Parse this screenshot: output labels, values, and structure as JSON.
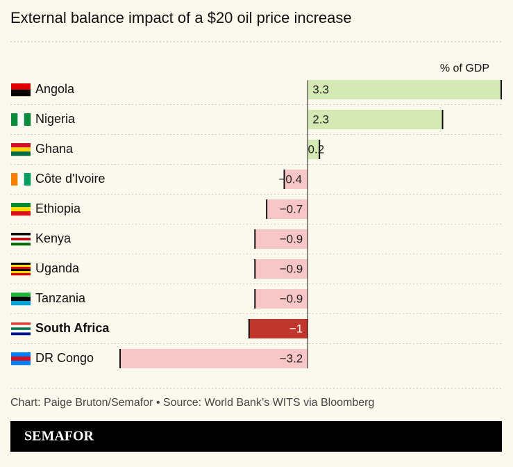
{
  "chart_data": {
    "type": "bar",
    "orientation": "horizontal",
    "title": "External balance impact of a $20 oil price increase",
    "unit_label": "% of GDP",
    "categories": [
      "Angola",
      "Nigeria",
      "Ghana",
      "Côte d'Ivoire",
      "Ethiopia",
      "Kenya",
      "Uganda",
      "Tanzania",
      "South Africa",
      "DR Congo"
    ],
    "values": [
      3.3,
      2.3,
      0.2,
      -0.4,
      -0.7,
      -0.9,
      -0.9,
      -0.9,
      -1,
      -3.2
    ],
    "value_labels": [
      "3.3",
      "2.3",
      "0.2",
      "−0.4",
      "−0.7",
      "−0.9",
      "−0.9",
      "−0.9",
      "−1",
      "−3.2"
    ],
    "colors": [
      "#d5e9b4",
      "#d5e9b4",
      "#d5e9b4",
      "#f8c6c6",
      "#f8c6c6",
      "#f8c6c6",
      "#f8c6c6",
      "#f8c6c6",
      "#c0362c",
      "#f8c6c6"
    ],
    "highlight": 8,
    "source": "Chart: Paige Bruton/Semafor • Source: World Bank’s WITS via Bloomberg",
    "brand": "SEMAFOR"
  }
}
